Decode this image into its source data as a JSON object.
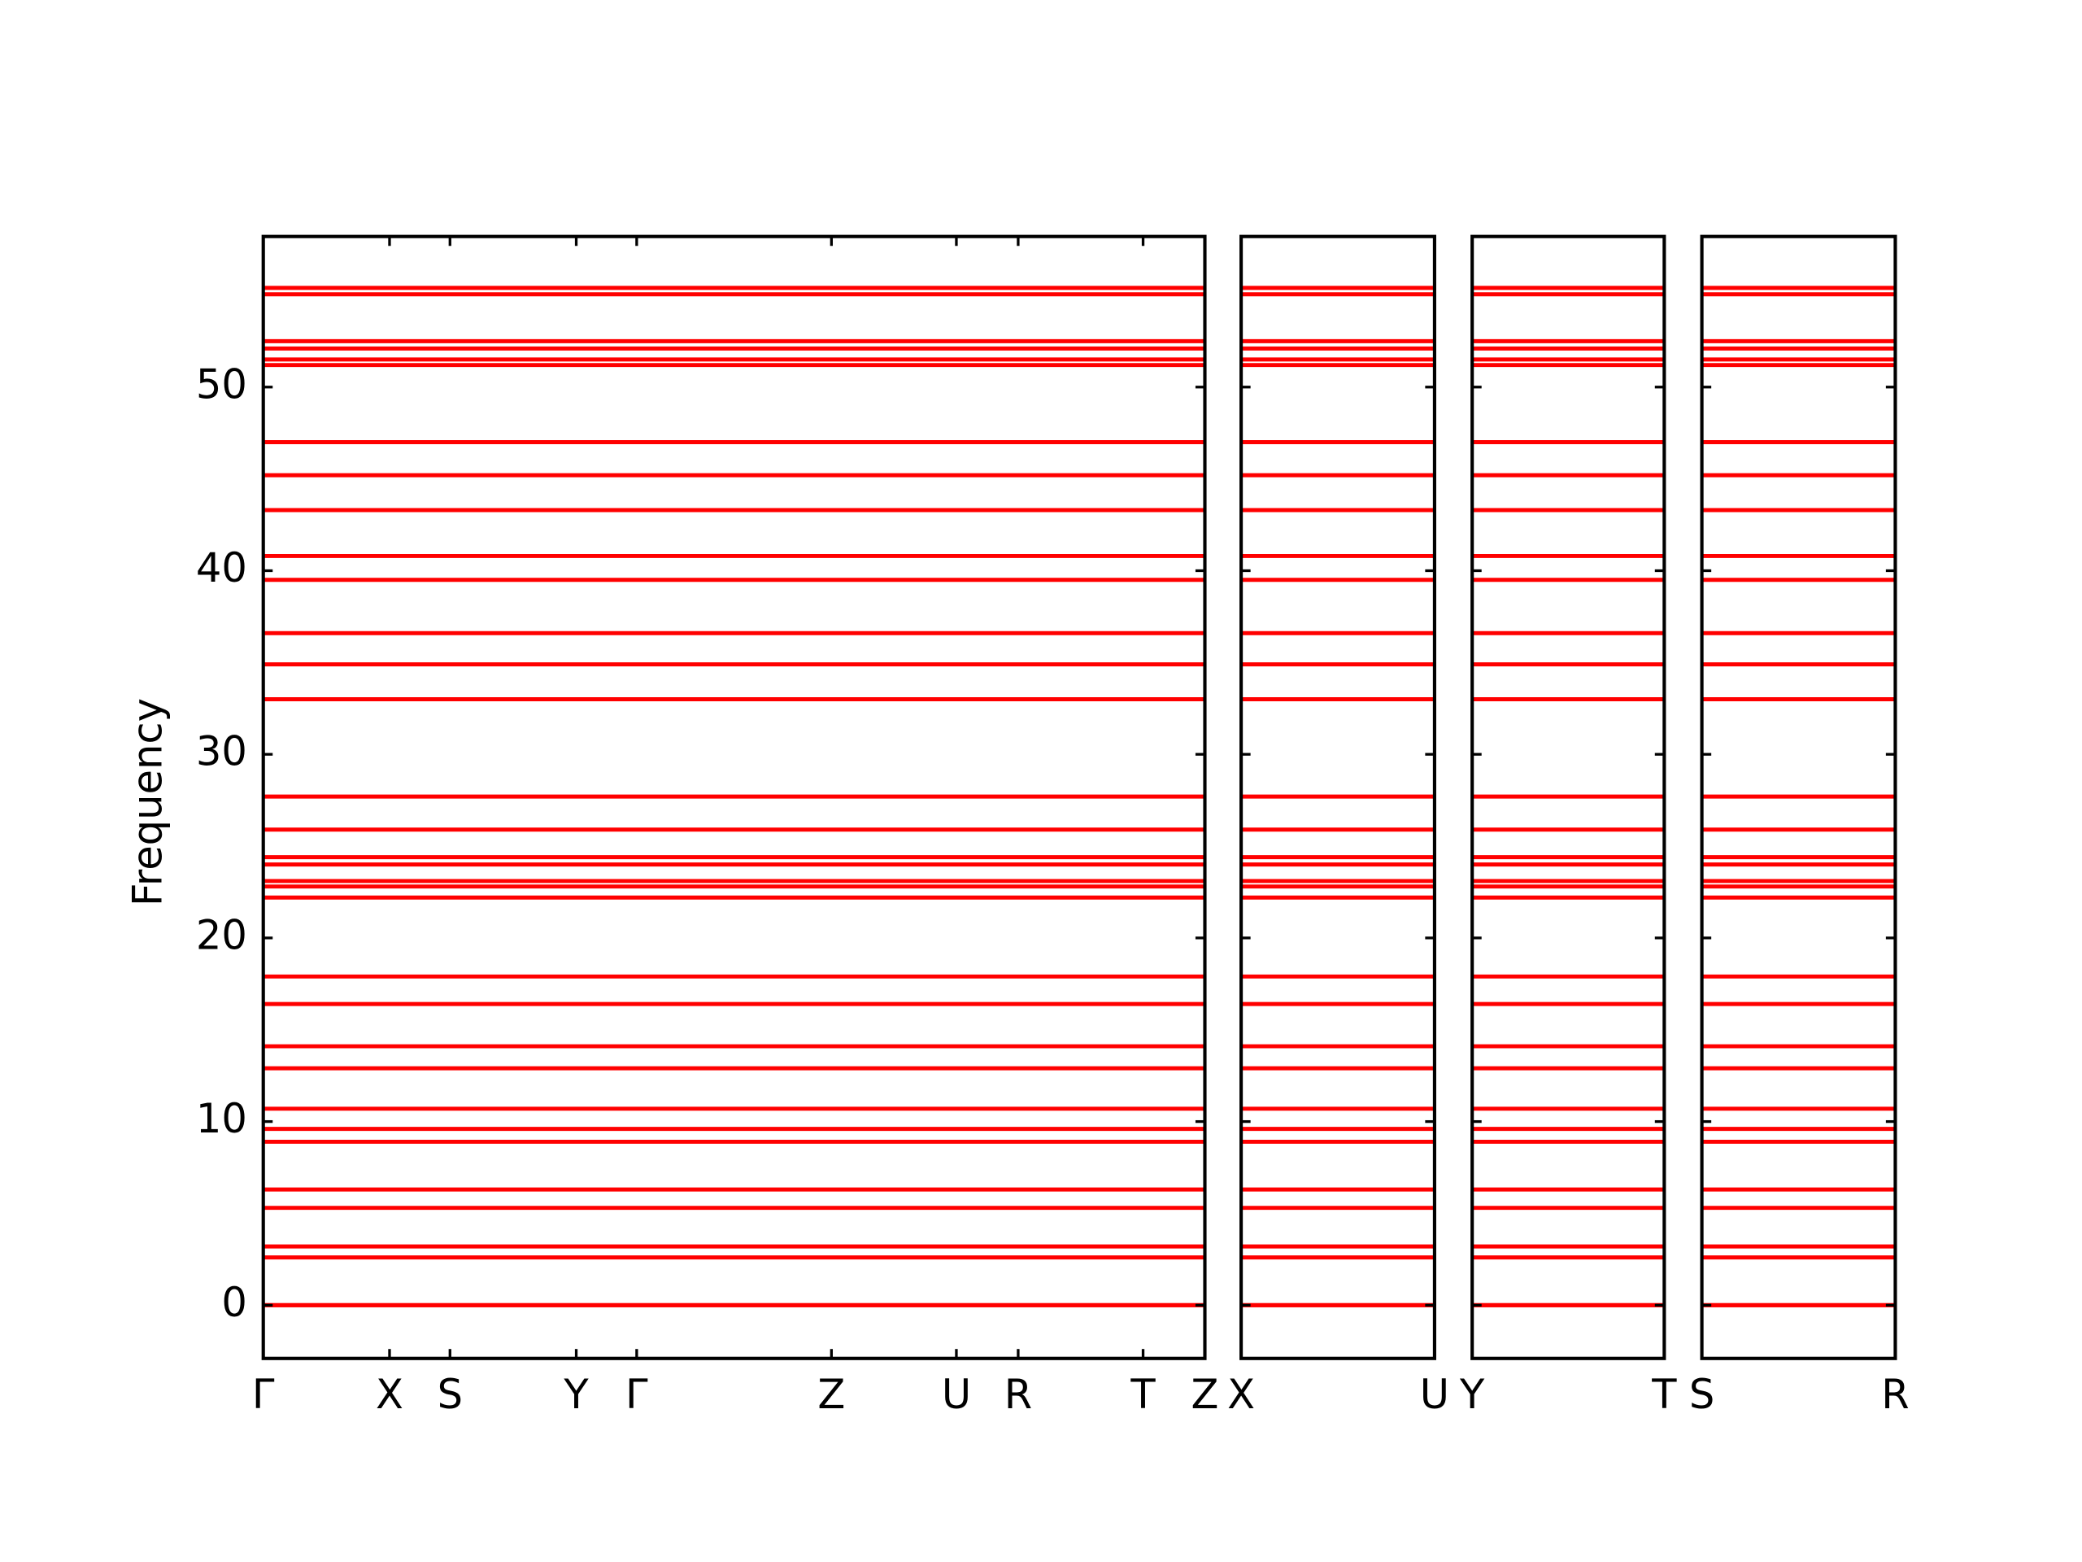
{
  "chart_data": {
    "type": "line",
    "ylabel": "Frequency",
    "ylim": [
      -2.9,
      58.2
    ],
    "yticks": [
      0,
      10,
      20,
      30,
      40,
      50
    ],
    "color": "#ff0000",
    "panels": [
      {
        "xlim": [
          0,
          7.01
        ],
        "xticks": [
          {
            "value": 0,
            "label": "Γ"
          },
          {
            "value": 0.94,
            "label": "X"
          },
          {
            "value": 1.39,
            "label": "S"
          },
          {
            "value": 2.33,
            "label": "Y"
          },
          {
            "value": 2.78,
            "label": "Γ"
          },
          {
            "value": 4.23,
            "label": "Z"
          },
          {
            "value": 5.16,
            "label": "U"
          },
          {
            "value": 5.62,
            "label": "R"
          },
          {
            "value": 6.55,
            "label": "T"
          },
          {
            "value": 7.01,
            "label": "Z"
          }
        ]
      },
      {
        "xlim": [
          0,
          1.44
        ],
        "xticks": [
          {
            "value": 0,
            "label": "X"
          },
          {
            "value": 1.44,
            "label": "U"
          }
        ]
      },
      {
        "xlim": [
          0,
          1.43
        ],
        "xticks": [
          {
            "value": 0,
            "label": "Y"
          },
          {
            "value": 1.43,
            "label": "T"
          }
        ]
      },
      {
        "xlim": [
          0,
          1.44
        ],
        "xticks": [
          {
            "value": 0,
            "label": "S"
          },
          {
            "value": 1.44,
            "label": "R"
          }
        ]
      }
    ],
    "bands": [
      0,
      0,
      0,
      2.6,
      3.2,
      5.3,
      6.3,
      8.9,
      9.6,
      10.7,
      12.9,
      14.1,
      16.4,
      17.9,
      22.2,
      22.8,
      23.1,
      24.0,
      24.4,
      25.9,
      27.7,
      33.0,
      34.9,
      36.6,
      39.5,
      40.8,
      43.3,
      45.2,
      47.0,
      51.2,
      51.5,
      52.1,
      52.5,
      55.05,
      55.4
    ]
  }
}
